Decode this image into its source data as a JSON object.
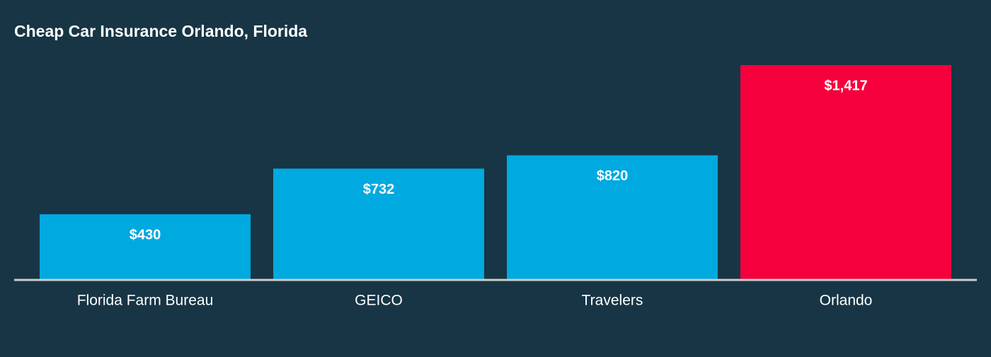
{
  "chart_data": {
    "type": "bar",
    "title": "Cheap Car Insurance Orlando, Florida",
    "categories": [
      "Florida Farm Bureau",
      "GEICO",
      "Travelers",
      "Orlando"
    ],
    "values": [
      430,
      732,
      820,
      1417
    ],
    "value_labels": [
      "$430",
      "$732",
      "$820",
      "$1,417"
    ],
    "colors": [
      "#00a9e0",
      "#00a9e0",
      "#00a9e0",
      "#f5003d"
    ]
  }
}
